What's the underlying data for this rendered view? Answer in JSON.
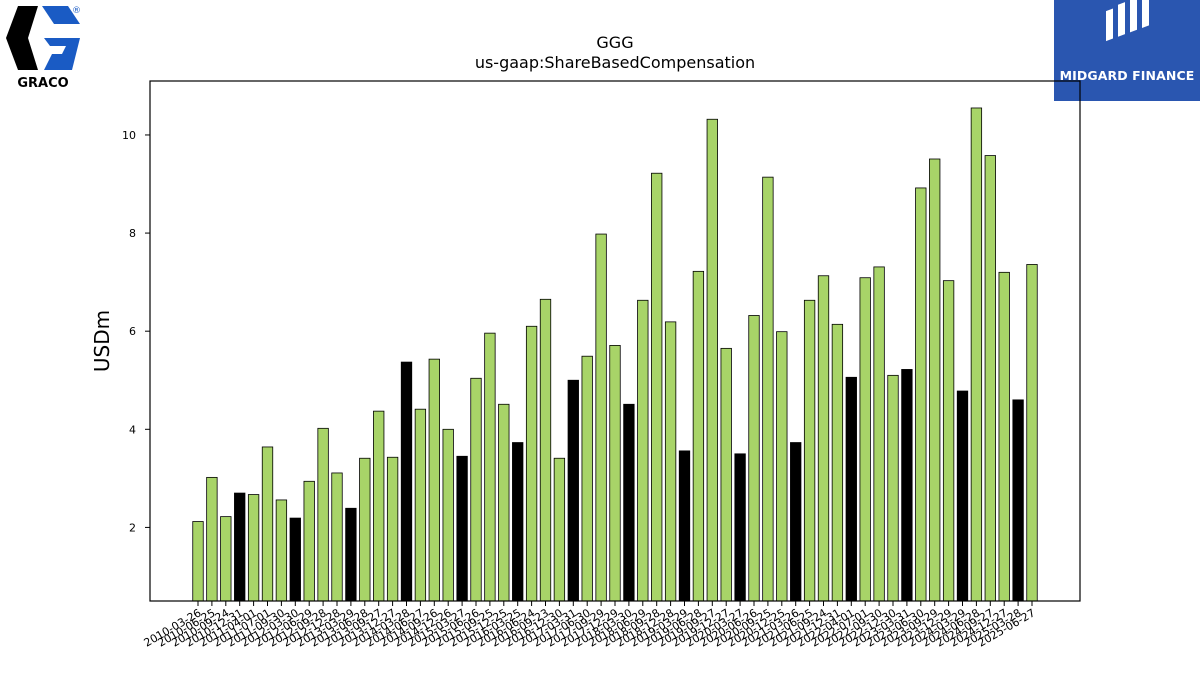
{
  "logos": {
    "left_brand": "GRACO",
    "left_registered": "®",
    "right_brand": "MIDGARD FINANCE"
  },
  "chart_data": {
    "type": "bar",
    "title": "GGG",
    "subtitle": "us-gaap:ShareBasedCompensation",
    "xlabel": "",
    "ylabel": "USDm",
    "ylim": [
      0.5,
      11.1
    ],
    "yticks": [
      2,
      4,
      6,
      8,
      10
    ],
    "colors": {
      "quarter": "#a8d468",
      "annual": "#000000",
      "edge": "#000000"
    },
    "categories": [
      "2010-03-26",
      "2010-06-25",
      "2010-09-24",
      "2010-12-31",
      "2011-04-01",
      "2011-07-01",
      "2011-09-30",
      "2012-03-30",
      "2012-06-29",
      "2012-09-28",
      "2012-12-28",
      "2013-03-29",
      "2013-06-28",
      "2013-09-27",
      "2013-12-27",
      "2014-03-28",
      "2014-06-27",
      "2014-09-26",
      "2014-12-26",
      "2015-03-27",
      "2015-06-26",
      "2015-09-25",
      "2015-12-25",
      "2016-03-25",
      "2016-06-24",
      "2016-09-23",
      "2016-12-30",
      "2017-03-31",
      "2017-06-30",
      "2017-09-29",
      "2017-12-29",
      "2018-03-30",
      "2018-06-29",
      "2018-09-28",
      "2018-12-28",
      "2019-03-29",
      "2019-06-28",
      "2019-09-27",
      "2019-12-27",
      "2020-03-27",
      "2020-06-26",
      "2020-09-25",
      "2020-12-25",
      "2021-03-26",
      "2021-06-25",
      "2021-09-24",
      "2021-12-31",
      "2022-04-01",
      "2022-07-01",
      "2022-09-30",
      "2022-12-30",
      "2023-03-31",
      "2023-06-30",
      "2023-09-29",
      "2023-12-29",
      "2024-03-29",
      "2024-06-28",
      "2024-09-27",
      "2024-12-27",
      "2025-03-28",
      "2025-06-27"
    ],
    "values": [
      2.12,
      3.02,
      2.22,
      2.7,
      2.67,
      3.64,
      2.56,
      2.19,
      2.94,
      4.02,
      3.11,
      2.39,
      3.41,
      4.37,
      3.43,
      5.37,
      4.41,
      5.43,
      4.0,
      3.45,
      5.04,
      5.96,
      4.51,
      3.73,
      6.1,
      6.65,
      3.41,
      5.0,
      5.49,
      7.98,
      5.71,
      4.51,
      6.63,
      9.22,
      6.19,
      3.56,
      7.22,
      10.32,
      5.65,
      3.5,
      6.32,
      9.14,
      5.99,
      3.73,
      6.63,
      7.13,
      6.14,
      5.06,
      7.09,
      7.31,
      5.1,
      5.22,
      8.92,
      9.51,
      7.03,
      4.78,
      10.55,
      9.58,
      7.2,
      4.6,
      7.36
    ],
    "bar_kind": [
      "q",
      "q",
      "q",
      "a",
      "q",
      "q",
      "q",
      "a",
      "q",
      "q",
      "q",
      "a",
      "q",
      "q",
      "q",
      "a",
      "q",
      "q",
      "q",
      "a",
      "q",
      "q",
      "q",
      "a",
      "q",
      "q",
      "q",
      "a",
      "q",
      "q",
      "q",
      "a",
      "q",
      "q",
      "q",
      "a",
      "q",
      "q",
      "q",
      "a",
      "q",
      "q",
      "q",
      "a",
      "q",
      "q",
      "q",
      "a",
      "q",
      "q",
      "q",
      "a",
      "q",
      "q",
      "q",
      "a",
      "q",
      "q",
      "q",
      "a",
      "q"
    ]
  }
}
